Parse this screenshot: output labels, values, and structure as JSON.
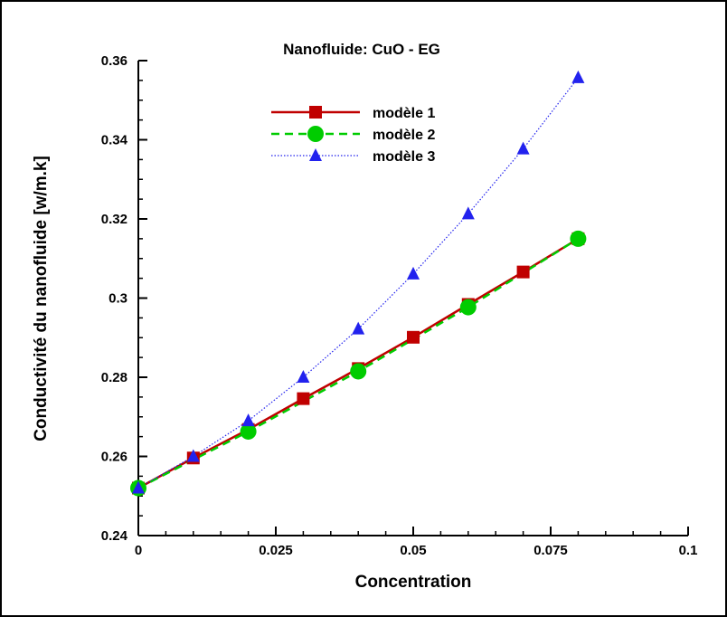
{
  "chart_data": {
    "type": "line",
    "title": "Nanofluide: CuO - EG",
    "xlabel": "Concentration",
    "ylabel": "Conductivité du nanofluide [w/m.k]",
    "xlim": [
      0,
      0.1
    ],
    "ylim": [
      0.24,
      0.36
    ],
    "x_ticks": [
      "0",
      "0.025",
      "0.05",
      "0.075",
      "0.1"
    ],
    "y_ticks": [
      "0.24",
      "0.26",
      "0.28",
      "0.3",
      "0.32",
      "0.34",
      "0.36"
    ],
    "grid": false,
    "legend_position": "top-center",
    "series": [
      {
        "name": "modèle 1",
        "color": "#c00000",
        "line_style": "solid",
        "marker": "square",
        "x": [
          0,
          0.01,
          0.02,
          0.03,
          0.04,
          0.05,
          0.06,
          0.07,
          0.08
        ],
        "y": [
          0.252,
          0.2596,
          0.2668,
          0.2746,
          0.2822,
          0.2901,
          0.2984,
          0.3066,
          0.315
        ]
      },
      {
        "name": "modèle 2",
        "color": "#00cc00",
        "line_style": "dashed",
        "marker": "circle",
        "x": [
          0,
          0.02,
          0.04,
          0.06,
          0.08
        ],
        "y": [
          0.252,
          0.2663,
          0.2815,
          0.2977,
          0.315
        ]
      },
      {
        "name": "modèle 3",
        "color": "#2222ee",
        "line_style": "dotted",
        "marker": "triangle",
        "x": [
          0,
          0.01,
          0.02,
          0.03,
          0.04,
          0.05,
          0.06,
          0.07,
          0.08
        ],
        "y": [
          0.252,
          0.26,
          0.269,
          0.28,
          0.2922,
          0.3061,
          0.3213,
          0.3377,
          0.3557
        ]
      }
    ]
  }
}
